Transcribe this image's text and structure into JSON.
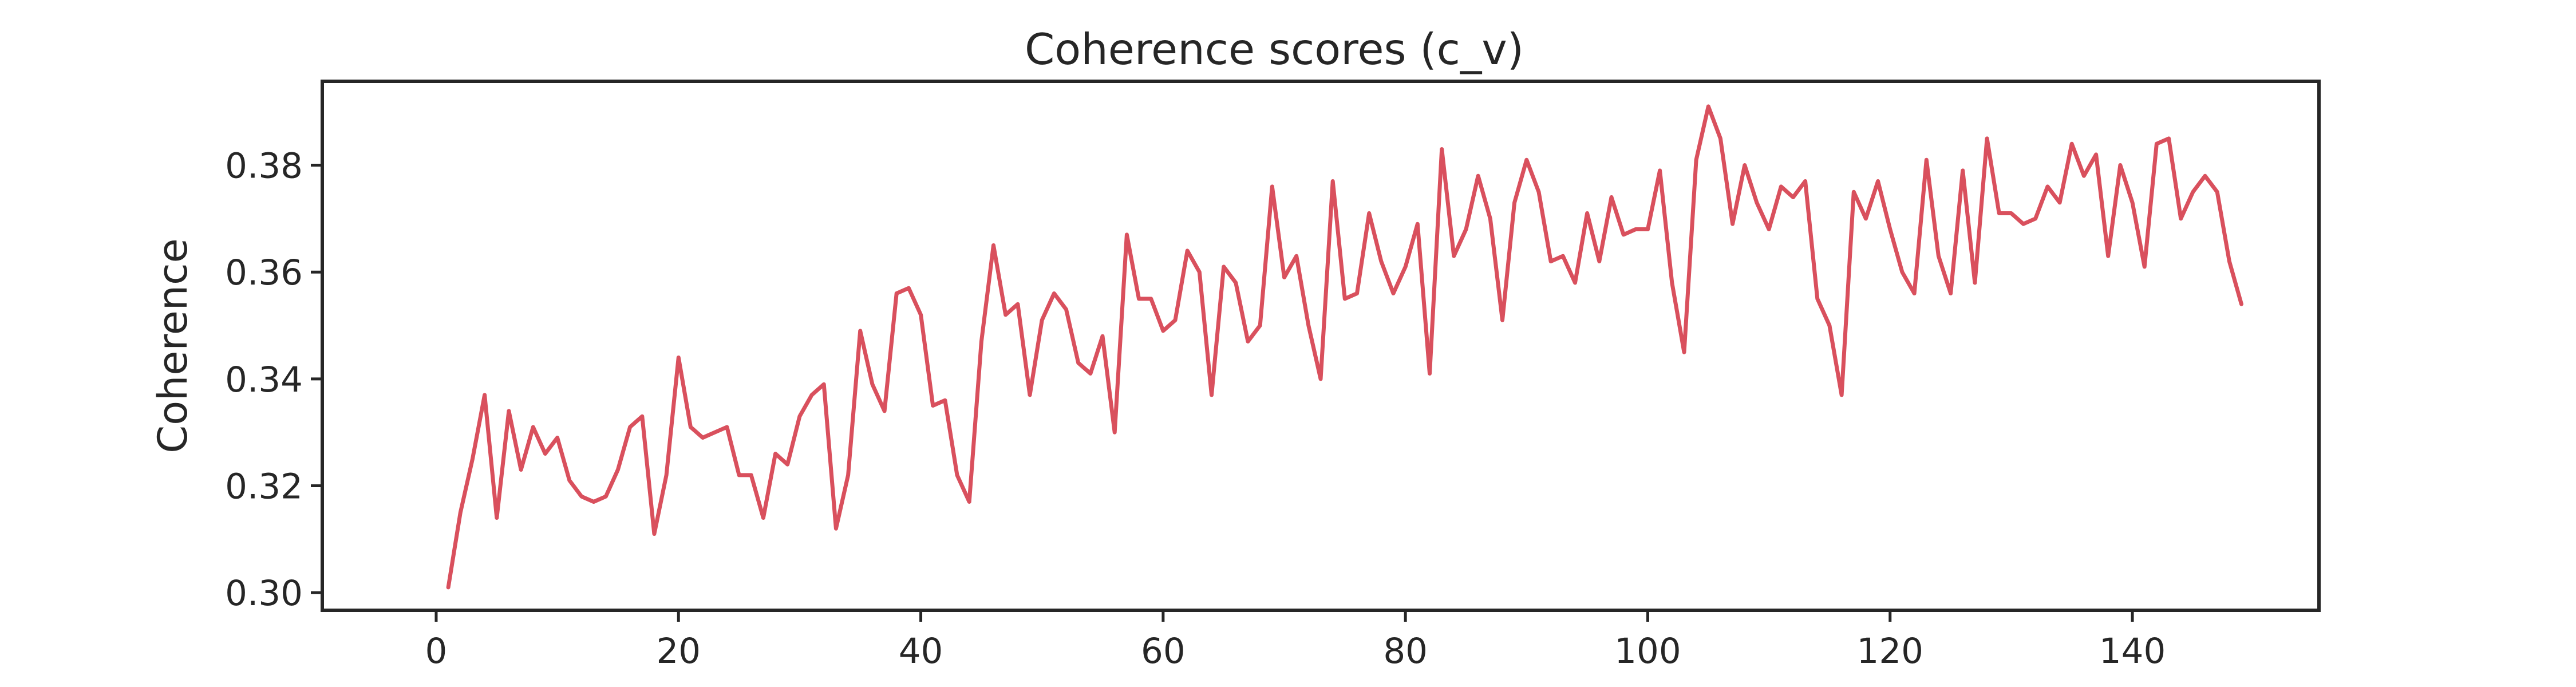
{
  "chart_data": {
    "type": "line",
    "title": "Coherence scores (c_v)",
    "xlabel": "",
    "ylabel": "Coherence",
    "xlim": [
      -9.4,
      155.4
    ],
    "ylim": [
      0.2967,
      0.3957
    ],
    "x_ticks": [
      0,
      20,
      40,
      60,
      80,
      100,
      120,
      140
    ],
    "y_ticks": [
      0.3,
      0.32,
      0.34,
      0.36,
      0.38
    ],
    "y_tick_labels": [
      "0.30",
      "0.32",
      "0.34",
      "0.36",
      "0.38"
    ],
    "grid": false,
    "legend": false,
    "line_color": "#d9505d",
    "series": [
      {
        "x": [
          1,
          2,
          3,
          4,
          5,
          6,
          7,
          8,
          9,
          10,
          11,
          12,
          13,
          14,
          15,
          16,
          17,
          18,
          19,
          20,
          21,
          22,
          23,
          24,
          25,
          26,
          27,
          28,
          29,
          30,
          31,
          32,
          33,
          34,
          35,
          36,
          37,
          38,
          39,
          40,
          41,
          42,
          43,
          44,
          45,
          46,
          47,
          48,
          49,
          50,
          51,
          52,
          53,
          54,
          55,
          56,
          57,
          58,
          59,
          60,
          61,
          62,
          63,
          64,
          65,
          66,
          67,
          68,
          69,
          70,
          71,
          72,
          73,
          74,
          75,
          76,
          77,
          78,
          79,
          80,
          81,
          82,
          83,
          84,
          85,
          86,
          87,
          88,
          89,
          90,
          91,
          92,
          93,
          94,
          95,
          96,
          97,
          98,
          99,
          100,
          101,
          102,
          103,
          104,
          105,
          106,
          107,
          108,
          109,
          110,
          111,
          112,
          113,
          114,
          115,
          116,
          117,
          118,
          119,
          120,
          121,
          122,
          123,
          124,
          125,
          126,
          127,
          128,
          129,
          130,
          131,
          132,
          133,
          134,
          135,
          136,
          137,
          138,
          139,
          140,
          141,
          142,
          143,
          144,
          145,
          146,
          147,
          148,
          149
        ],
        "y": [
          0.301,
          0.315,
          0.325,
          0.337,
          0.314,
          0.334,
          0.323,
          0.331,
          0.326,
          0.329,
          0.321,
          0.318,
          0.317,
          0.318,
          0.323,
          0.331,
          0.333,
          0.311,
          0.322,
          0.344,
          0.331,
          0.329,
          0.33,
          0.331,
          0.322,
          0.322,
          0.314,
          0.326,
          0.324,
          0.333,
          0.337,
          0.339,
          0.312,
          0.322,
          0.349,
          0.339,
          0.334,
          0.356,
          0.357,
          0.352,
          0.335,
          0.336,
          0.322,
          0.317,
          0.347,
          0.365,
          0.352,
          0.354,
          0.337,
          0.351,
          0.356,
          0.353,
          0.343,
          0.341,
          0.348,
          0.33,
          0.367,
          0.355,
          0.355,
          0.349,
          0.351,
          0.364,
          0.36,
          0.337,
          0.361,
          0.358,
          0.347,
          0.35,
          0.376,
          0.359,
          0.363,
          0.35,
          0.34,
          0.377,
          0.355,
          0.356,
          0.371,
          0.362,
          0.356,
          0.361,
          0.369,
          0.341,
          0.383,
          0.363,
          0.368,
          0.378,
          0.37,
          0.351,
          0.373,
          0.381,
          0.375,
          0.362,
          0.363,
          0.358,
          0.371,
          0.362,
          0.374,
          0.367,
          0.368,
          0.368,
          0.379,
          0.358,
          0.345,
          0.381,
          0.391,
          0.385,
          0.369,
          0.38,
          0.373,
          0.368,
          0.376,
          0.374,
          0.377,
          0.355,
          0.35,
          0.337,
          0.375,
          0.37,
          0.377,
          0.368,
          0.36,
          0.356,
          0.381,
          0.363,
          0.356,
          0.379,
          0.358,
          0.385,
          0.371,
          0.371,
          0.369,
          0.37,
          0.376,
          0.373,
          0.384,
          0.378,
          0.382,
          0.363,
          0.38,
          0.373,
          0.361,
          0.384,
          0.385,
          0.37,
          0.375,
          0.378,
          0.375,
          0.362,
          0.354
        ]
      }
    ]
  }
}
